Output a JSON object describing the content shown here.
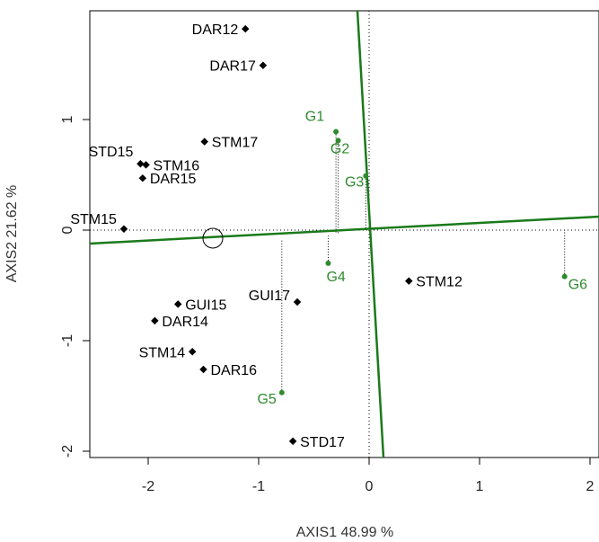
{
  "chart_data": {
    "type": "scatter",
    "title": "",
    "xlabel": "AXIS1 48.99 %",
    "ylabel": "AXIS2 21.62 %",
    "xlim": [
      -2.5,
      2.07
    ],
    "ylim": [
      -2.05,
      1.95
    ],
    "x_ticks": [
      -2,
      -1,
      0,
      1,
      2
    ],
    "y_ticks": [
      -2,
      -1,
      0,
      1
    ],
    "colors": {
      "points": "#000000",
      "genotypes": "#2e8b2e",
      "axes": "#1a7a1a"
    },
    "environments": [
      {
        "label": "DAR12",
        "x": -1.12,
        "y": 1.82
      },
      {
        "label": "DAR17",
        "x": -0.96,
        "y": 1.49
      },
      {
        "label": "STM17",
        "x": -1.49,
        "y": 0.8
      },
      {
        "label": "STD15",
        "x": -2.07,
        "y": 0.6
      },
      {
        "label": "STM16",
        "x": -2.02,
        "y": 0.59
      },
      {
        "label": "DAR15",
        "x": -2.05,
        "y": 0.47
      },
      {
        "label": "STM15",
        "x": -2.22,
        "y": 0.01
      },
      {
        "label": "STM12",
        "x": 0.36,
        "y": -0.46
      },
      {
        "label": "GUI15",
        "x": -1.73,
        "y": -0.67
      },
      {
        "label": "GUI17",
        "x": -0.65,
        "y": -0.65
      },
      {
        "label": "DAR14",
        "x": -1.94,
        "y": -0.82
      },
      {
        "label": "STM14",
        "x": -1.6,
        "y": -1.1
      },
      {
        "label": "DAR16",
        "x": -1.5,
        "y": -1.26
      },
      {
        "label": "STD17",
        "x": -0.69,
        "y": -1.91
      }
    ],
    "genotypes": [
      {
        "label": "G1",
        "x": -0.3,
        "y": 0.89,
        "proj_y": -0.03
      },
      {
        "label": "G2",
        "x": -0.28,
        "y": 0.81,
        "proj_y": -0.03
      },
      {
        "label": "G3",
        "x": -0.03,
        "y": 0.49,
        "proj_y": 0.0
      },
      {
        "label": "G4",
        "x": -0.37,
        "y": -0.3,
        "proj_y": -0.05
      },
      {
        "label": "G5",
        "x": -0.79,
        "y": -1.47,
        "proj_y": -0.08
      },
      {
        "label": "G6",
        "x": 1.77,
        "y": -0.42,
        "proj_y": 0.0
      }
    ],
    "ideal_circle": {
      "x": -1.4,
      "y": -0.08
    }
  }
}
